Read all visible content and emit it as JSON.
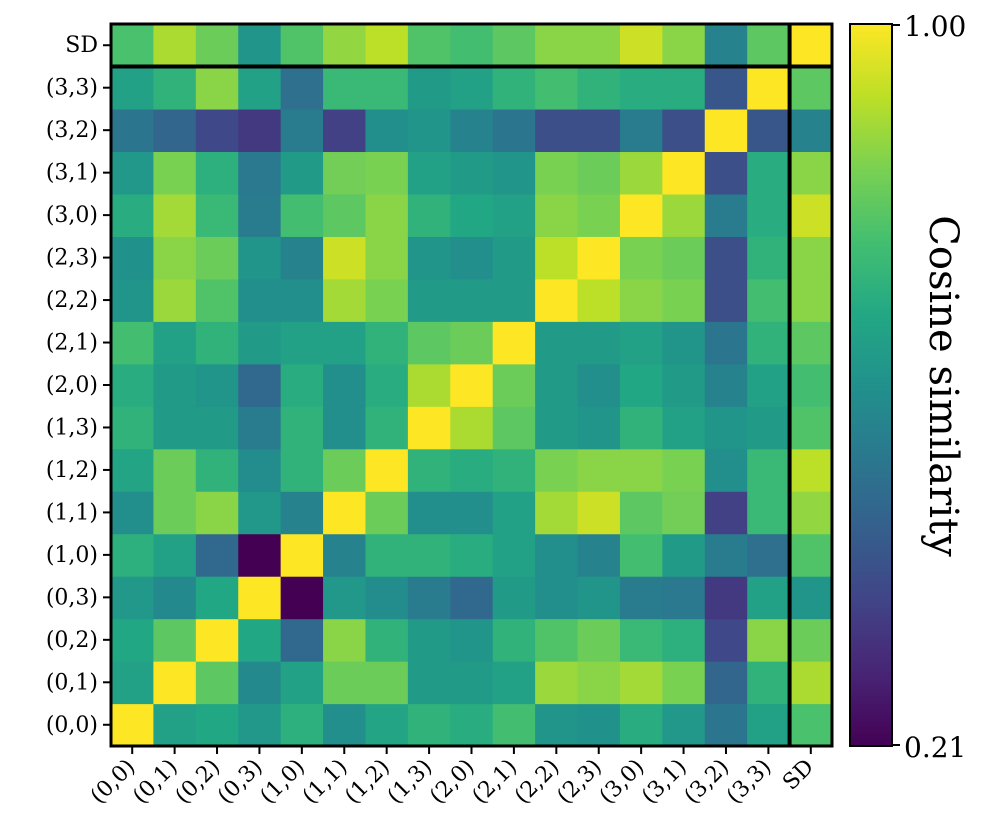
{
  "chart_data": {
    "type": "heatmap",
    "labels": [
      "(0,0)",
      "(0,1)",
      "(0,2)",
      "(0,3)",
      "(1,0)",
      "(1,1)",
      "(1,2)",
      "(1,3)",
      "(2,0)",
      "(2,1)",
      "(2,2)",
      "(2,3)",
      "(3,0)",
      "(3,1)",
      "(3,2)",
      "(3,3)",
      "SD"
    ],
    "row_order_top_to_bottom": [
      "SD",
      "(3,3)",
      "(3,2)",
      "(3,1)",
      "(3,0)",
      "(2,3)",
      "(2,2)",
      "(2,1)",
      "(2,0)",
      "(1,3)",
      "(1,2)",
      "(1,1)",
      "(1,0)",
      "(0,3)",
      "(0,2)",
      "(0,1)",
      "(0,0)"
    ],
    "matrix": [
      [
        1.0,
        0.66,
        0.68,
        0.63,
        0.71,
        0.6,
        0.67,
        0.72,
        0.7,
        0.76,
        0.62,
        0.61,
        0.7,
        0.63,
        0.52,
        0.66,
        0.77
      ],
      [
        0.66,
        1.0,
        0.8,
        0.58,
        0.66,
        0.82,
        0.82,
        0.64,
        0.64,
        0.66,
        0.88,
        0.86,
        0.89,
        0.84,
        0.47,
        0.72,
        0.9
      ],
      [
        0.68,
        0.8,
        1.0,
        0.68,
        0.48,
        0.86,
        0.72,
        0.64,
        0.62,
        0.72,
        0.78,
        0.82,
        0.74,
        0.71,
        0.38,
        0.86,
        0.82
      ],
      [
        0.63,
        0.58,
        0.68,
        1.0,
        0.21,
        0.63,
        0.59,
        0.54,
        0.48,
        0.64,
        0.6,
        0.62,
        0.54,
        0.53,
        0.34,
        0.66,
        0.62
      ],
      [
        0.71,
        0.66,
        0.48,
        0.21,
        1.0,
        0.56,
        0.72,
        0.72,
        0.7,
        0.66,
        0.6,
        0.56,
        0.76,
        0.64,
        0.54,
        0.5,
        0.78
      ],
      [
        0.6,
        0.82,
        0.86,
        0.63,
        0.56,
        1.0,
        0.82,
        0.6,
        0.6,
        0.66,
        0.89,
        0.94,
        0.8,
        0.83,
        0.36,
        0.74,
        0.87
      ],
      [
        0.67,
        0.82,
        0.72,
        0.59,
        0.72,
        0.82,
        1.0,
        0.72,
        0.7,
        0.72,
        0.84,
        0.86,
        0.86,
        0.84,
        0.6,
        0.74,
        0.92
      ],
      [
        0.72,
        0.64,
        0.64,
        0.54,
        0.72,
        0.6,
        0.72,
        1.0,
        0.9,
        0.8,
        0.64,
        0.62,
        0.72,
        0.66,
        0.62,
        0.64,
        0.78
      ],
      [
        0.7,
        0.64,
        0.62,
        0.48,
        0.7,
        0.6,
        0.7,
        0.9,
        1.0,
        0.82,
        0.64,
        0.6,
        0.68,
        0.64,
        0.56,
        0.66,
        0.76
      ],
      [
        0.76,
        0.66,
        0.72,
        0.64,
        0.66,
        0.66,
        0.72,
        0.8,
        0.82,
        1.0,
        0.64,
        0.64,
        0.66,
        0.62,
        0.52,
        0.72,
        0.8
      ],
      [
        0.62,
        0.88,
        0.78,
        0.6,
        0.6,
        0.89,
        0.84,
        0.64,
        0.64,
        0.64,
        1.0,
        0.92,
        0.86,
        0.84,
        0.4,
        0.76,
        0.86
      ],
      [
        0.61,
        0.86,
        0.82,
        0.62,
        0.56,
        0.94,
        0.86,
        0.62,
        0.6,
        0.64,
        0.92,
        1.0,
        0.84,
        0.82,
        0.4,
        0.72,
        0.86
      ],
      [
        0.7,
        0.89,
        0.74,
        0.54,
        0.76,
        0.8,
        0.86,
        0.72,
        0.68,
        0.66,
        0.86,
        0.84,
        1.0,
        0.88,
        0.54,
        0.7,
        0.94
      ],
      [
        0.63,
        0.84,
        0.71,
        0.53,
        0.64,
        0.83,
        0.84,
        0.66,
        0.64,
        0.62,
        0.84,
        0.82,
        0.88,
        1.0,
        0.4,
        0.7,
        0.86
      ],
      [
        0.52,
        0.47,
        0.38,
        0.34,
        0.54,
        0.36,
        0.6,
        0.62,
        0.56,
        0.52,
        0.4,
        0.4,
        0.54,
        0.4,
        1.0,
        0.42,
        0.56
      ],
      [
        0.66,
        0.72,
        0.86,
        0.66,
        0.5,
        0.74,
        0.74,
        0.64,
        0.66,
        0.72,
        0.76,
        0.72,
        0.7,
        0.7,
        0.42,
        1.0,
        0.8
      ],
      [
        0.77,
        0.9,
        0.82,
        0.62,
        0.78,
        0.87,
        0.92,
        0.78,
        0.76,
        0.8,
        0.86,
        0.86,
        0.94,
        0.86,
        0.56,
        0.8,
        1.0
      ]
    ],
    "colorbar": {
      "min": 0.21,
      "max": 1.0,
      "min_label": "0.21",
      "max_label": "1.00",
      "label": "Cosine similarity",
      "colormap": "viridis"
    },
    "separator_after_label": "(3,3)",
    "grid": false,
    "title": "",
    "xlabel": "",
    "ylabel": ""
  }
}
